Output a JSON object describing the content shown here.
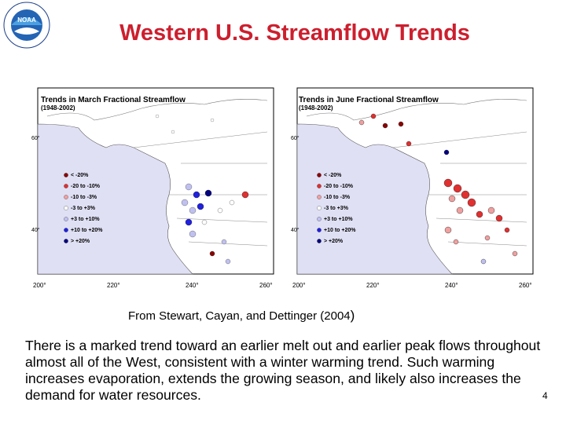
{
  "slide": {
    "title": "Western U.S. Streamflow Trends",
    "caption": "From Stewart, Cayan, and Dettinger (2004",
    "caption_paren": ")",
    "body": "There is a marked trend toward an earlier melt out and earlier peak flows throughout almost all of the West, consistent with a winter warming trend. Such warming increases evaporation, extends the growing season, and likely also increases the demand for water resources.",
    "page_number": "4",
    "logo_text": "NOAA",
    "logo_ring_text": "NATIONAL OCEANIC AND ATMOSPHERIC ADMINISTRATION · U.S. DEPARTMENT OF COMMERCE"
  },
  "maps": [
    {
      "title": "Trends in March Fractional Streamflow",
      "subtitle": "(1948-2002)",
      "y_ticks": [
        "60°",
        "40°"
      ],
      "x_ticks": [
        "200°",
        "220°",
        "240°",
        "260°"
      ],
      "legend": [
        "< -20%",
        "-20 to -10%",
        "-10 to  -3%",
        "-3 to  +3%",
        "+3 to +10%",
        "+10 to +20%",
        "> +20%"
      ]
    },
    {
      "title": "Trends in June Fractional Streamflow",
      "subtitle": "(1948-2002)",
      "y_ticks": [
        "60°",
        "40°"
      ],
      "x_ticks": [
        "200°",
        "220°",
        "240°",
        "260°"
      ],
      "legend": [
        "< -20%",
        "-20 to -10%",
        "-10 to  -3%",
        "-3 to  +3%",
        "+3 to +10%",
        "+10 to +20%",
        "> +20%"
      ]
    }
  ],
  "legend_colors": [
    "#8b0000",
    "#e03030",
    "#f0a0a0",
    "#ffffff",
    "#c0c0f0",
    "#2020e0",
    "#000080"
  ],
  "ocean_color": "#e0e0f5"
}
